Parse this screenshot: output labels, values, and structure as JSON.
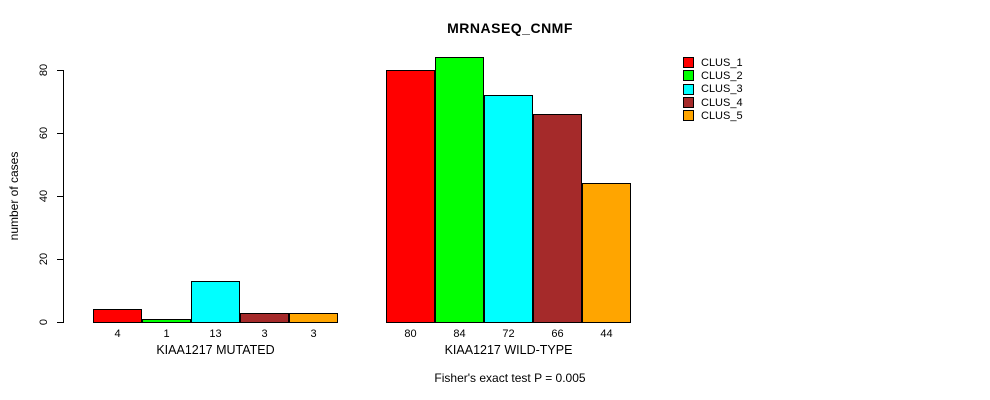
{
  "title": "MRNASEQ_CNMF",
  "footer": "Fisher's exact test P = 0.005",
  "chart_data": {
    "type": "bar",
    "title": "MRNASEQ_CNMF",
    "ylabel": "number of cases",
    "xlabel": "",
    "ylim": [
      0,
      84
    ],
    "yticks": [
      0,
      20,
      40,
      60,
      80
    ],
    "grid": false,
    "legend_position": "top-right-outside",
    "bar_value_labels": true,
    "series": [
      {
        "name": "CLUS_1",
        "color": "#FF0000"
      },
      {
        "name": "CLUS_2",
        "color": "#00FF00"
      },
      {
        "name": "CLUS_3",
        "color": "#00FFFF"
      },
      {
        "name": "CLUS_4",
        "color": "#A52A2A"
      },
      {
        "name": "CLUS_5",
        "color": "#FFA500"
      }
    ],
    "groups": [
      {
        "label": "KIAA1217 MUTATED",
        "values": [
          4,
          1,
          13,
          3,
          3
        ]
      },
      {
        "label": "KIAA1217 WILD-TYPE",
        "values": [
          80,
          84,
          72,
          66,
          44
        ]
      }
    ],
    "annotation": "Fisher's exact test P = 0.005"
  }
}
